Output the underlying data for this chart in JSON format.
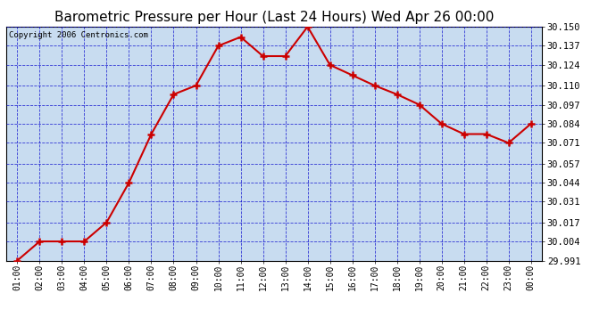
{
  "title": "Barometric Pressure per Hour (Last 24 Hours) Wed Apr 26 00:00",
  "copyright": "Copyright 2006 Centronics.com",
  "x_labels": [
    "01:00",
    "02:00",
    "03:00",
    "04:00",
    "05:00",
    "06:00",
    "07:00",
    "08:00",
    "09:00",
    "10:00",
    "11:00",
    "12:00",
    "13:00",
    "14:00",
    "15:00",
    "16:00",
    "17:00",
    "18:00",
    "19:00",
    "20:00",
    "21:00",
    "22:00",
    "23:00",
    "00:00"
  ],
  "y_values": [
    29.991,
    30.004,
    30.004,
    30.004,
    30.017,
    30.044,
    30.077,
    30.104,
    30.11,
    30.137,
    30.143,
    30.13,
    30.13,
    30.15,
    30.124,
    30.117,
    30.11,
    30.104,
    30.097,
    30.084,
    30.077,
    30.077,
    30.071,
    30.084
  ],
  "y_min": 29.991,
  "y_max": 30.15,
  "y_ticks": [
    29.991,
    30.004,
    30.017,
    30.031,
    30.044,
    30.057,
    30.071,
    30.084,
    30.097,
    30.11,
    30.124,
    30.137,
    30.15
  ],
  "line_color": "#cc0000",
  "marker_color": "#cc0000",
  "bg_color": "#c8dcf0",
  "fig_bg_color": "#ffffff",
  "border_color": "#000000",
  "grid_color": "#0000cc",
  "title_fontsize": 11,
  "copyright_fontsize": 6.5,
  "tick_fontsize": 7.5,
  "xtick_fontsize": 7
}
